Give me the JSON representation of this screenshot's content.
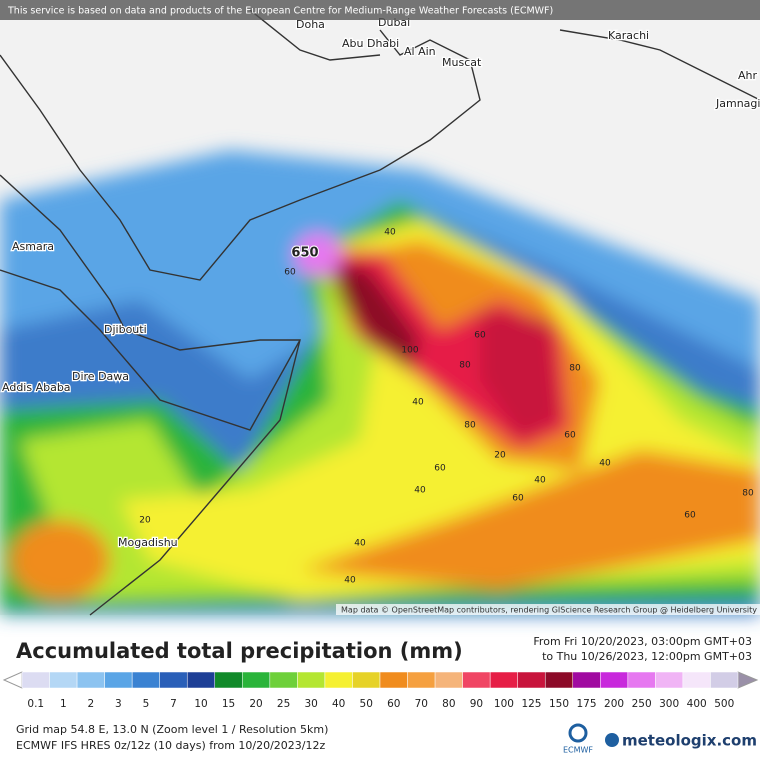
{
  "banner": "This service is based on data and products of the European Centre for Medium-Range Weather Forecasts (ECMWF)",
  "places": [
    "Doha",
    "Dubai",
    "Abu Dhabi",
    "Al Ain",
    "Muscat",
    "Karachi",
    "Asmara",
    "Djibouti",
    "Dire Dawa",
    "Addis Ababa",
    "Mogadishu",
    "Jamnagi",
    "Ahr"
  ],
  "contour_labels": [
    650,
    40,
    60,
    80,
    100,
    60,
    80,
    40,
    60,
    40,
    20,
    40,
    60,
    80,
    40,
    60,
    40,
    20,
    40,
    60,
    80
  ],
  "attribution": "Map data © OpenStreetMap contributors, rendering GIScience Research Group @ Heidelberg University",
  "title": "Accumulated total precipitation (mm)",
  "period": {
    "from": "From Fri 10/20/2023, 03:00pm GMT+03",
    "to": "to Thu 10/26/2023, 12:00pm GMT+03"
  },
  "legend": {
    "items": [
      {
        "value": 0.1,
        "color": "#dcdcf2"
      },
      {
        "value": 1,
        "color": "#b4d7f5"
      },
      {
        "value": 2,
        "color": "#8cc3f0"
      },
      {
        "value": 3,
        "color": "#5aa5e6"
      },
      {
        "value": 5,
        "color": "#3a82d2"
      },
      {
        "value": 7,
        "color": "#2a5fb8"
      },
      {
        "value": 10,
        "color": "#1e3f96"
      },
      {
        "value": 15,
        "color": "#118a2a"
      },
      {
        "value": 20,
        "color": "#2ab43a"
      },
      {
        "value": 25,
        "color": "#6ed03a"
      },
      {
        "value": 30,
        "color": "#b4e632"
      },
      {
        "value": 40,
        "color": "#f5f032"
      },
      {
        "value": 50,
        "color": "#e6d228"
      },
      {
        "value": 60,
        "color": "#f08c1e"
      },
      {
        "value": 70,
        "color": "#f5a040"
      },
      {
        "value": 80,
        "color": "#f5b47a"
      },
      {
        "value": 90,
        "color": "#f04664"
      },
      {
        "value": 100,
        "color": "#e61e46"
      },
      {
        "value": 125,
        "color": "#c8143c"
      },
      {
        "value": 150,
        "color": "#8c0a28"
      },
      {
        "value": 175,
        "color": "#a00aa0"
      },
      {
        "value": 200,
        "color": "#c828dc"
      },
      {
        "value": 250,
        "color": "#e678f0"
      },
      {
        "value": 300,
        "color": "#f0b4f5"
      },
      {
        "value": 400,
        "color": "#f5e6fa"
      },
      {
        "value": 500,
        "color": "#d2cde6"
      }
    ]
  },
  "footer": {
    "grid": "Grid map 54.8 E, 13.0 N (Zoom level 1 / Resolution 5km)",
    "model": "ECMWF IFS HRES 0z/12z (10 days)  from  10/20/2023/12z"
  },
  "logos": {
    "ecmwf": "ECMWF",
    "meteologix": "meteologix.com"
  }
}
